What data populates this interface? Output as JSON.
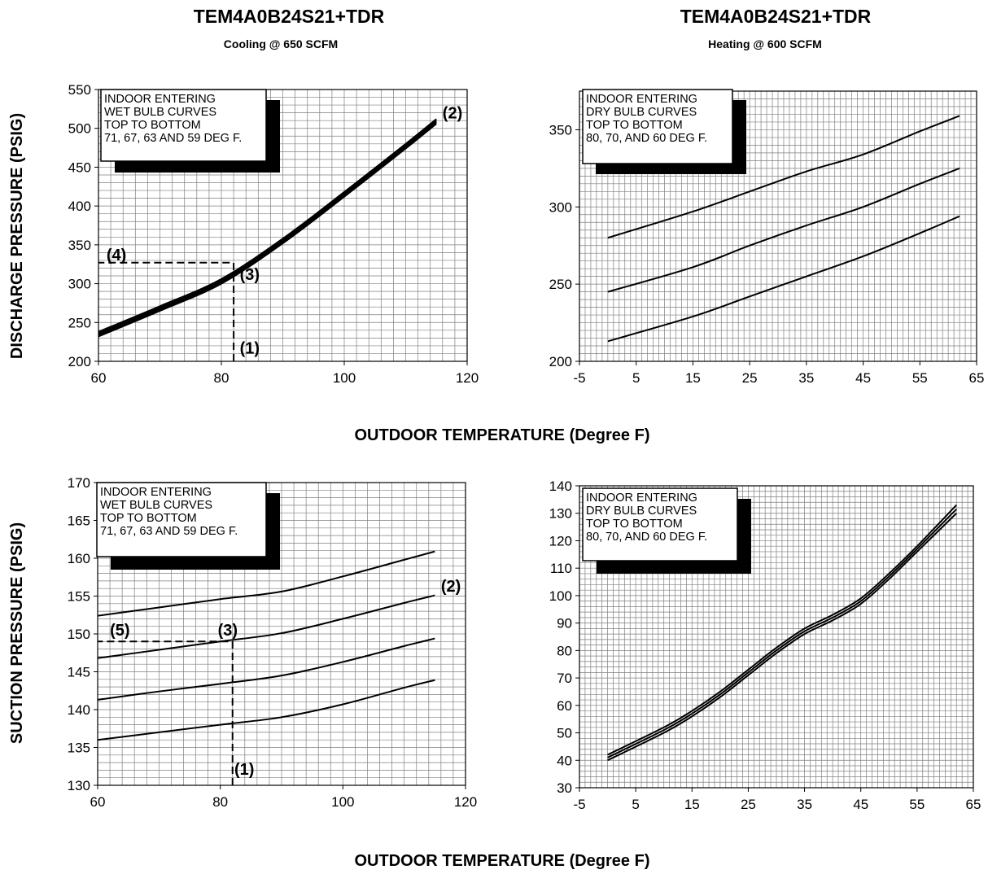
{
  "top_left": {
    "title": "TEM4A0B24S21+TDR",
    "subtitle": "Cooling @ 650 SCFM"
  },
  "top_right": {
    "title": "TEM4A0B24S21+TDR",
    "subtitle": "Heating @ 600 SCFM"
  },
  "y_label_top": "DISCHARGE PRESSURE (PSIG)",
  "y_label_bottom": "SUCTION PRESSURE (PSIG)",
  "x_label_top": "OUTDOOR TEMPERATURE (Degree F)",
  "x_label_bottom": "OUTDOOR TEMPERATURE (Degree F)",
  "colors": {
    "line": "#000000",
    "grid": "#7f7f7f",
    "background": "#ffffff"
  },
  "chart_data": [
    {
      "id": "cooling-discharge",
      "type": "line",
      "xlim": [
        60,
        120
      ],
      "ylim": [
        200,
        550
      ],
      "x_ticks": [
        "60",
        "80",
        "100",
        "120"
      ],
      "y_ticks": [
        "200",
        "250",
        "300",
        "350",
        "400",
        "450",
        "500",
        "550"
      ],
      "grid": true,
      "legend": {
        "placement": "top-left",
        "lines": [
          "INDOOR ENTERING",
          "WET BULB CURVES",
          "TOP TO BOTTOM",
          "71, 67, 63 AND 59 DEG F."
        ]
      },
      "series": [
        {
          "x": [
            60,
            70,
            80,
            90,
            100,
            110,
            115
          ],
          "y": [
            238,
            271,
            306,
            358,
            418,
            480,
            512
          ]
        },
        {
          "x": [
            60,
            70,
            80,
            90,
            100,
            110,
            115
          ],
          "y": [
            236,
            269,
            304,
            356,
            416,
            478,
            510
          ]
        },
        {
          "x": [
            60,
            70,
            80,
            90,
            100,
            110,
            115
          ],
          "y": [
            234,
            267,
            302,
            354,
            414,
            476,
            508
          ]
        },
        {
          "x": [
            60,
            70,
            80,
            90,
            100,
            110,
            115
          ],
          "y": [
            232,
            265,
            300,
            352,
            412,
            474,
            506
          ]
        }
      ],
      "guides": [
        {
          "points": [
            [
              82,
              200
            ],
            [
              82,
              327
            ],
            [
              60,
              327
            ]
          ]
        }
      ],
      "annotations": [
        {
          "text": "(1)",
          "x": 83,
          "y": 210
        },
        {
          "text": "(2)",
          "x": 116,
          "y": 513
        },
        {
          "text": "(3)",
          "x": 83,
          "y": 305
        },
        {
          "text": "(4)",
          "x": 61.3,
          "y": 330
        }
      ]
    },
    {
      "id": "heating-discharge",
      "type": "line",
      "xlim": [
        -5,
        65
      ],
      "ylim": [
        200,
        375
      ],
      "x_ticks": [
        "-5",
        "5",
        "15",
        "25",
        "35",
        "45",
        "55",
        "65"
      ],
      "y_ticks": [
        "200",
        "250",
        "300",
        "350"
      ],
      "grid": true,
      "legend": {
        "placement": "top-left",
        "lines": [
          "INDOOR ENTERING",
          "DRY BULB CURVES",
          "TOP TO BOTTOM",
          "80, 70, AND 60 DEG F."
        ]
      },
      "series": [
        {
          "x": [
            0,
            15,
            25,
            35,
            45,
            55,
            62
          ],
          "y": [
            280,
            297,
            310,
            323,
            334,
            349,
            359
          ]
        },
        {
          "x": [
            0,
            15,
            25,
            35,
            45,
            55,
            62
          ],
          "y": [
            245,
            261,
            275,
            288,
            300,
            315,
            325
          ]
        },
        {
          "x": [
            0,
            15,
            25,
            35,
            45,
            55,
            62
          ],
          "y": [
            213,
            229,
            242,
            255,
            268,
            283,
            294
          ]
        }
      ],
      "guides": [],
      "annotations": []
    },
    {
      "id": "cooling-suction",
      "type": "line",
      "xlim": [
        60,
        120
      ],
      "ylim": [
        130,
        170
      ],
      "x_ticks": [
        "60",
        "80",
        "100",
        "120"
      ],
      "y_ticks": [
        "130",
        "135",
        "140",
        "145",
        "150",
        "155",
        "160",
        "165",
        "170"
      ],
      "grid": true,
      "legend": {
        "placement": "top-left",
        "lines": [
          "INDOOR ENTERING",
          "WET BULB CURVES",
          "TOP TO BOTTOM",
          "71, 67, 63 AND 59 DEG F."
        ]
      },
      "series": [
        {
          "x": [
            60,
            70,
            80,
            90,
            100,
            110,
            115
          ],
          "y": [
            152.4,
            153.5,
            154.6,
            155.6,
            157.6,
            159.8,
            160.9
          ]
        },
        {
          "x": [
            60,
            70,
            80,
            90,
            100,
            110,
            115
          ],
          "y": [
            146.8,
            147.9,
            149.0,
            150.1,
            152.0,
            154.1,
            155.1
          ]
        },
        {
          "x": [
            60,
            70,
            80,
            90,
            100,
            110,
            115
          ],
          "y": [
            141.3,
            142.4,
            143.4,
            144.5,
            146.3,
            148.4,
            149.4
          ]
        },
        {
          "x": [
            60,
            70,
            80,
            90,
            100,
            110,
            115
          ],
          "y": [
            136.0,
            137.0,
            138.0,
            139.0,
            140.7,
            142.9,
            143.9
          ]
        }
      ],
      "guides": [
        {
          "points": [
            [
              82,
              130
            ],
            [
              82,
              149
            ],
            [
              60,
              149
            ]
          ]
        }
      ],
      "annotations": [
        {
          "text": "(1)",
          "x": 82.3,
          "y": 131.4
        },
        {
          "text": "(2)",
          "x": 116,
          "y": 155.6
        },
        {
          "text": "(3)",
          "x": 79.6,
          "y": 149.8
        },
        {
          "text": "(5)",
          "x": 62,
          "y": 149.8
        }
      ]
    },
    {
      "id": "heating-suction",
      "type": "line",
      "xlim": [
        -5,
        65
      ],
      "ylim": [
        30,
        140
      ],
      "x_ticks": [
        "-5",
        "5",
        "15",
        "25",
        "35",
        "45",
        "55",
        "65"
      ],
      "y_ticks": [
        "30",
        "40",
        "50",
        "60",
        "70",
        "80",
        "90",
        "100",
        "110",
        "120",
        "130",
        "140"
      ],
      "grid": true,
      "legend": {
        "placement": "top-left",
        "lines": [
          "INDOOR ENTERING",
          "DRY BULB CURVES",
          "TOP TO BOTTOM",
          "80, 70, AND 60 DEG F."
        ]
      },
      "series": [
        {
          "x": [
            0,
            10,
            15,
            20,
            25,
            30,
            35,
            40,
            45,
            50,
            55,
            62
          ],
          "y": [
            42,
            52,
            58,
            65,
            73,
            81,
            88,
            93,
            99,
            108,
            118,
            133
          ]
        },
        {
          "x": [
            0,
            10,
            15,
            20,
            25,
            30,
            35,
            40,
            45,
            50,
            55,
            62
          ],
          "y": [
            41,
            51,
            57,
            64,
            72,
            80,
            87,
            92,
            98,
            107,
            117,
            131.5
          ]
        },
        {
          "x": [
            0,
            10,
            15,
            20,
            25,
            30,
            35,
            40,
            45,
            50,
            55,
            62
          ],
          "y": [
            40,
            50,
            56,
            63,
            71,
            79,
            86,
            91,
            97,
            106,
            116,
            130
          ]
        }
      ],
      "guides": [],
      "annotations": []
    }
  ]
}
